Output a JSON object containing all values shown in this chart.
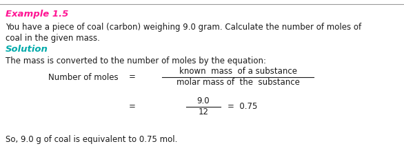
{
  "background_color": "#ffffff",
  "top_line_color": "#999999",
  "title": "Example 1.5",
  "title_color": "#ff1493",
  "body_text_color": "#1a1a1a",
  "solution_color": "#00aaaa",
  "line1": "You have a piece of coal (carbon) weighing 9.0 gram. Calculate the number of moles of",
  "line2": "coal in the given mass.",
  "solution_label": "Solution",
  "equation_intro": "The mass is converted to the number of moles by the equation:",
  "lhs_label": "Number of moles",
  "eq_sign": "=",
  "numerator": "known  mass  of a substance",
  "denominator": "molar mass of  the  substance",
  "frac_num": "9.0",
  "frac_den": "12",
  "eq_result": "=  0.75",
  "conclusion": "So, 9.0 g of coal is equivalent to 0.75 mol.",
  "fig_width": 5.86,
  "fig_height": 2.38,
  "dpi": 100
}
